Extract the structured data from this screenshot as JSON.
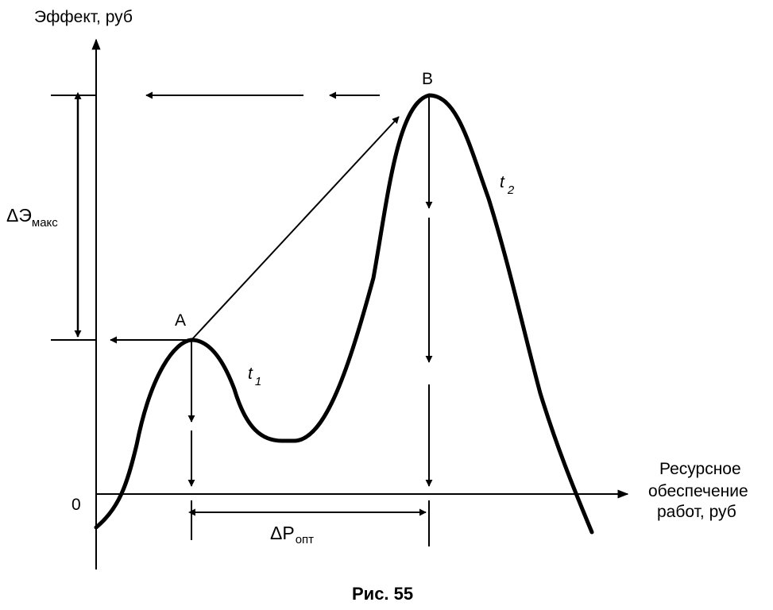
{
  "labels": {
    "y_axis": "Эффект, руб",
    "x_axis_line1": "Ресурсное",
    "x_axis_line2": "обеспечение",
    "x_axis_line3": "работ, руб",
    "origin": "0",
    "point_a": "A",
    "point_b": "B",
    "curve_t1": "t",
    "curve_t1_sub": "1",
    "curve_t2": "t",
    "curve_t2_sub": "2",
    "delta_e_symbol": "ΔЭ",
    "delta_e_sub": "макс",
    "delta_p_symbol": "ΔP",
    "delta_p_sub": "опт",
    "caption": "Рис. 55"
  },
  "colors": {
    "ink": "#000000",
    "background": "#ffffff"
  }
}
